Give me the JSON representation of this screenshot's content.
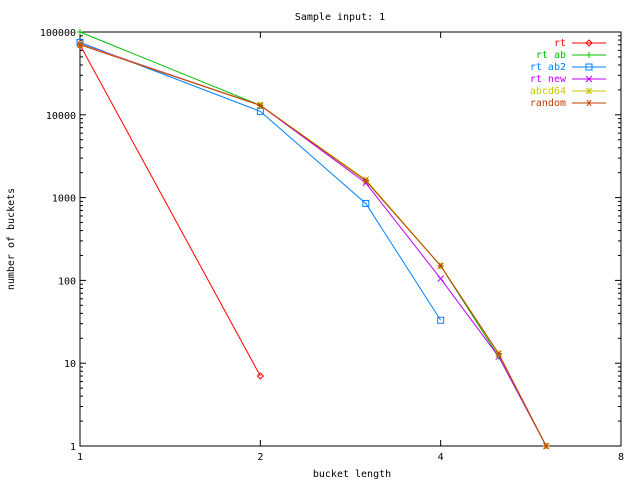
{
  "chart_data": {
    "type": "line",
    "title": "Sample input: 1",
    "xlabel": "bucket length",
    "ylabel": "number of buckets",
    "x_scale": "log2",
    "y_scale": "log10",
    "xlim": [
      1,
      8
    ],
    "ylim": [
      1,
      100000
    ],
    "x_ticks": [
      "1",
      "2",
      "4",
      "8"
    ],
    "y_ticks": [
      "1",
      "10",
      "100",
      "1000",
      "10000",
      "100000"
    ],
    "grid": false,
    "legend_position": "top-right",
    "series": [
      {
        "name": "rt",
        "color": "#ff0000",
        "marker": "diamond",
        "points": [
          [
            1,
            70000
          ],
          [
            2,
            7
          ]
        ]
      },
      {
        "name": "rt ab",
        "color": "#00c000",
        "marker": "plus",
        "points": [
          [
            1,
            100000
          ],
          [
            2,
            13000
          ],
          [
            3,
            1600
          ],
          [
            4,
            150
          ],
          [
            5,
            12
          ],
          [
            6,
            1
          ]
        ]
      },
      {
        "name": "rt ab2",
        "color": "#0080ff",
        "marker": "square",
        "points": [
          [
            1,
            75000
          ],
          [
            2,
            11000
          ],
          [
            3,
            850
          ],
          [
            4,
            33
          ]
        ]
      },
      {
        "name": "rt new",
        "color": "#c000ff",
        "marker": "cross",
        "points": [
          [
            1,
            72000
          ],
          [
            2,
            13000
          ],
          [
            3,
            1500
          ],
          [
            4,
            105
          ],
          [
            5,
            12
          ],
          [
            6,
            1
          ]
        ]
      },
      {
        "name": "abcd64",
        "color": "#c8c800",
        "marker": "star",
        "points": [
          [
            1,
            71000
          ],
          [
            2,
            13000
          ],
          [
            3,
            1650
          ],
          [
            4,
            150
          ],
          [
            5,
            13
          ],
          [
            6,
            1
          ]
        ]
      },
      {
        "name": "random",
        "color": "#c04000",
        "marker": "asterisk",
        "points": [
          [
            1,
            70000
          ],
          [
            2,
            13000
          ],
          [
            3,
            1600
          ],
          [
            4,
            150
          ],
          [
            5,
            13
          ],
          [
            6,
            1
          ]
        ]
      }
    ]
  }
}
